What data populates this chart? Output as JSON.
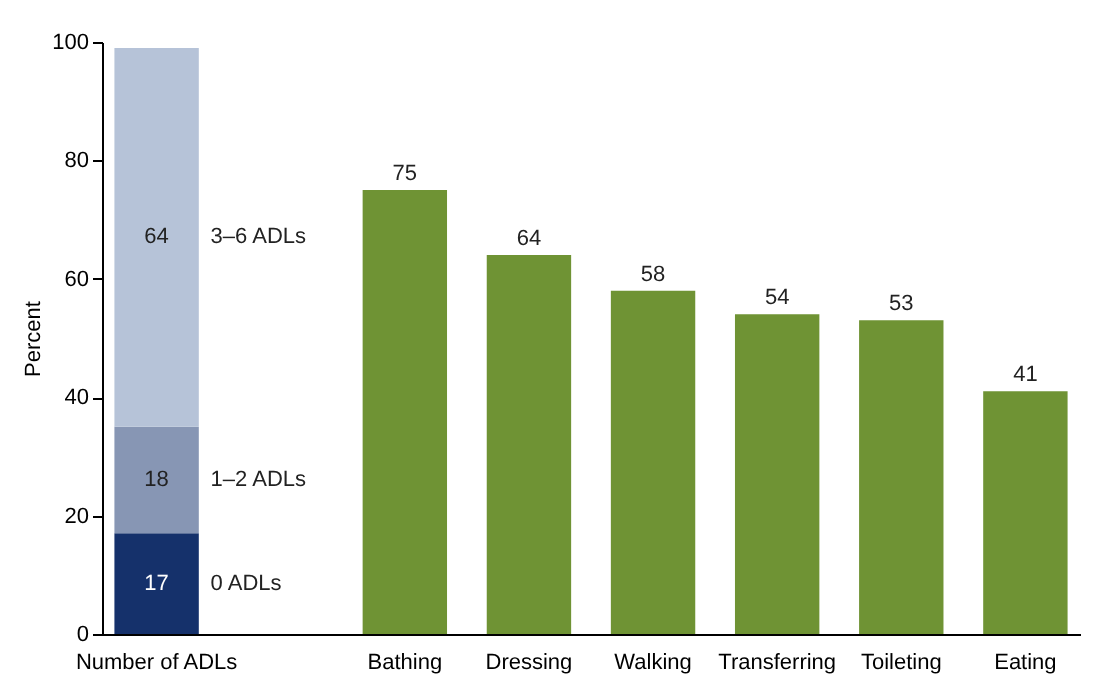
{
  "chart_data": {
    "type": "bar",
    "stacked": true,
    "ylabel": "Percent",
    "categories": [
      "Number of ADLs",
      "Bathing",
      "Dressing",
      "Walking",
      "Transferring",
      "Toileting",
      "Eating"
    ],
    "series": [
      {
        "name": "0 ADLs",
        "color": "#15316b",
        "values": [
          17,
          null,
          null,
          null,
          null,
          null,
          null
        ]
      },
      {
        "name": "1–2 ADLs",
        "color": "#8796b4",
        "values": [
          18,
          null,
          null,
          null,
          null,
          null,
          null
        ]
      },
      {
        "name": "3–6 ADLs",
        "color": "#b6c3d8",
        "values": [
          64,
          null,
          null,
          null,
          null,
          null,
          null
        ]
      },
      {
        "color": "#6f9334",
        "values": [
          null,
          75,
          64,
          58,
          54,
          53,
          41
        ]
      }
    ],
    "ylim": [
      0,
      100
    ],
    "yticks": [
      0,
      20,
      40,
      60,
      80,
      100
    ],
    "grid": false,
    "legend": false,
    "data_labels": true
  }
}
